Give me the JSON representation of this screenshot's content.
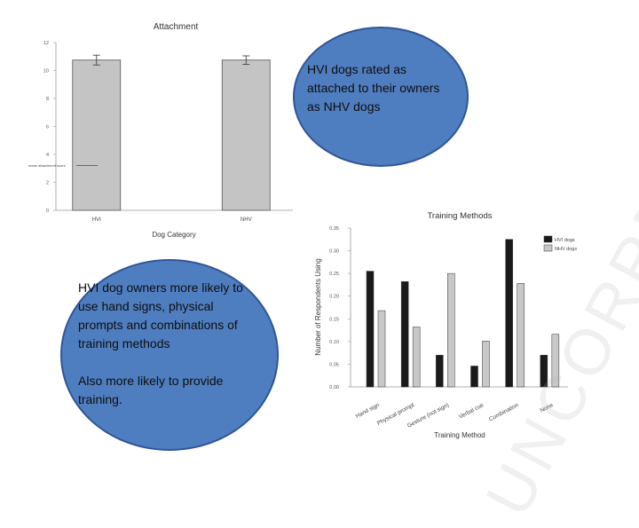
{
  "charts": {
    "chart_data": [
      {
        "type": "bar",
        "title": "Attachment",
        "xlabel": "Dog Category",
        "ylabel": "",
        "categories": [
          "HVI",
          "NHV"
        ],
        "values": [
          10.75,
          10.75
        ],
        "error": [
          0.35,
          0.3
        ],
        "ylim": [
          0,
          12
        ],
        "yticks": [
          "0",
          "2",
          "4",
          "6",
          "8",
          "10",
          "12"
        ],
        "annotation": "mean attachment score",
        "colors": {
          "bar": "#c4c4c4"
        }
      },
      {
        "type": "bar",
        "title": "Training Methods",
        "xlabel": "Training Method",
        "ylabel": "Number of Respondents Using",
        "categories": [
          "Hand sign",
          "Physical prompt",
          "Gesture (not sign)",
          "Verbal cue",
          "Combination",
          "None"
        ],
        "series": [
          {
            "name": "HVI dogs",
            "values": [
              0.255,
              0.232,
              0.07,
              0.046,
              0.325,
              0.07
            ],
            "color": "#1a1a1a"
          },
          {
            "name": "NHV dogs",
            "values": [
              0.168,
              0.132,
              0.25,
              0.101,
              0.228,
              0.116
            ],
            "color": "#c8c8c8"
          }
        ],
        "ylim": [
          0,
          0.35
        ],
        "yticks": [
          "0.00",
          "0.05",
          "0.10",
          "0.15",
          "0.20",
          "0.25",
          "0.30",
          "0.35"
        ],
        "legend": "top-right"
      }
    ]
  },
  "bubbles": {
    "top": "HVI dogs rated as attached to their owners as NHV dogs",
    "bottom": "HVI dog owners more likely to use hand signs, physical prompts and combinations of training methods",
    "bottom_extra": "Also more likely to provide training."
  },
  "watermark": "UNCORRE"
}
